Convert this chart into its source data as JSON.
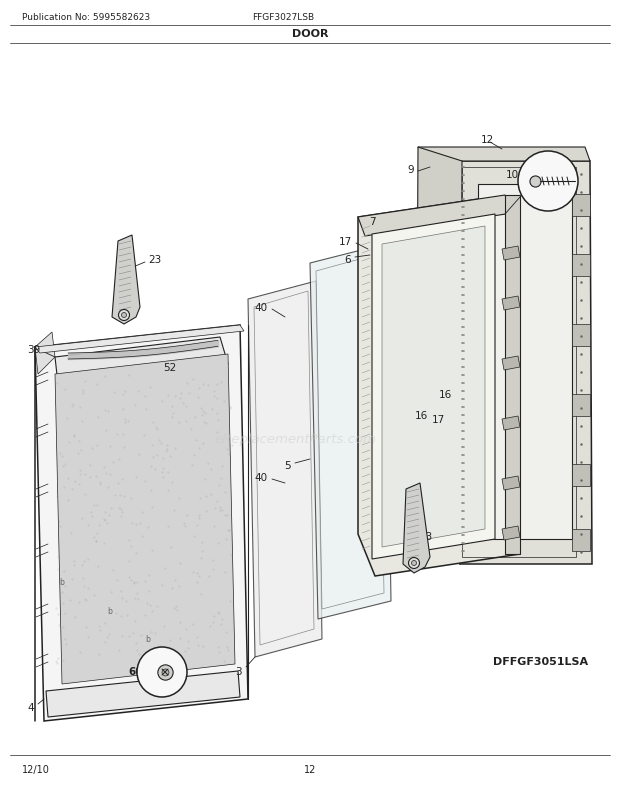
{
  "title": "DOOR",
  "pub_no": "Publication No: 5995582623",
  "model": "FFGF3027LSB",
  "diagram_id": "DFFGF3051LSA",
  "footer_left": "12/10",
  "footer_center": "12",
  "bg_color": "#ffffff",
  "line_color": "#222222",
  "label_color": "#222222",
  "watermark": "eReplacementParts.com",
  "title_fontsize": 8,
  "header_fontsize": 6.5,
  "label_fontsize": 7.5,
  "footer_fontsize": 7
}
